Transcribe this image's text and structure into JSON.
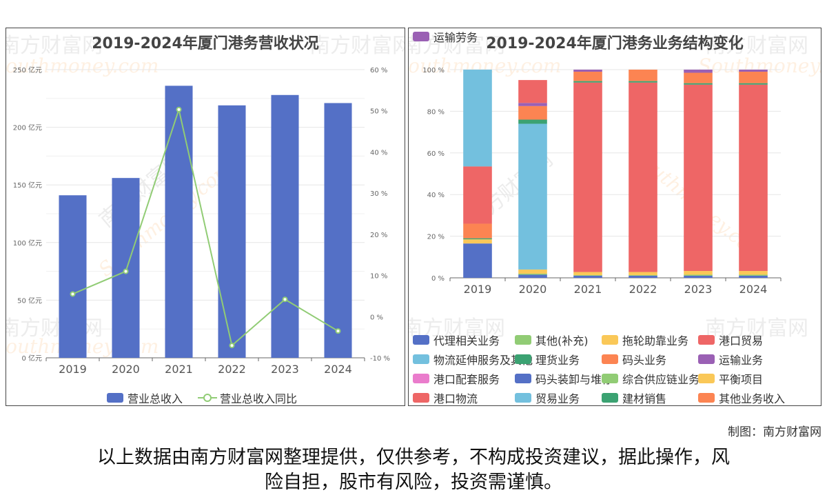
{
  "left_chart": {
    "title": "2019-2024年厦门港务营收状况",
    "legend": {
      "bar": "营业总收入",
      "line": "营业总收入同比"
    }
  },
  "right_chart": {
    "title": "2019-2024年厦门港务业务结构变化"
  },
  "watermark": {
    "cn": "南方财富网",
    "en": "Southmoney.com"
  },
  "credit": "制图：南方财富网",
  "disclaimer": {
    "line1": "以上数据由南方财富网整理提供，仅供参考，不构成投资建议，据此操作，风",
    "line2": "险自担，股市有风险，投资需谨慎。"
  },
  "colors": {
    "bar": "#5470c6",
    "line": "#91cc75"
  },
  "chart_data": [
    {
      "type": "bar",
      "title": "2019-2024年厦门港务营收状况",
      "categories": [
        "2019",
        "2020",
        "2021",
        "2022",
        "2023",
        "2024"
      ],
      "series": [
        {
          "name": "营业总收入",
          "type": "bar",
          "axis": "left",
          "unit": "亿元",
          "values": [
            141,
            156,
            236,
            219,
            228,
            221
          ]
        },
        {
          "name": "营业总收入同比",
          "type": "line",
          "axis": "right",
          "unit": "%",
          "values": [
            5.5,
            11,
            50.3,
            -7,
            4.2,
            -3.5
          ]
        }
      ],
      "y_left": {
        "ticks": [
          "0 亿元",
          "50 亿元",
          "100 亿元",
          "150 亿元",
          "200 亿元",
          "250 亿元"
        ],
        "min": 0,
        "max": 250
      },
      "y_right": {
        "ticks": [
          "-10 %",
          "0 %",
          "10 %",
          "20 %",
          "30 %",
          "40 %",
          "50 %",
          "60 %"
        ],
        "min": -10,
        "max": 60
      }
    },
    {
      "type": "bar",
      "stacked": true,
      "title": "2019-2024年厦门港务业务结构变化",
      "categories": [
        "2019",
        "2020",
        "2021",
        "2022",
        "2023",
        "2024"
      ],
      "y": {
        "ticks": [
          "0 %",
          "20 %",
          "40 %",
          "60 %",
          "80 %",
          "100 %"
        ],
        "min": 0,
        "max": 100
      },
      "series": [
        {
          "name": "代理相关业务",
          "color": "#5470c6",
          "values": [
            16.5,
            0,
            0,
            0,
            0,
            0
          ]
        },
        {
          "name": "其他(补充)",
          "color": "#91cc75",
          "values": [
            0,
            0,
            0,
            0,
            0,
            0
          ]
        },
        {
          "name": "拖轮助靠业务",
          "color": "#fac858",
          "values": [
            2,
            0,
            0,
            0,
            0,
            0
          ]
        },
        {
          "name": "港口贸易",
          "color": "#ee6666",
          "values": [
            0,
            0,
            0,
            0,
            0,
            0
          ]
        },
        {
          "name": "物流延伸服务及其他",
          "color": "#73c0de",
          "values": [
            0,
            0,
            0,
            0,
            0,
            0
          ]
        },
        {
          "name": "理货业务",
          "color": "#3ba272",
          "values": [
            0.5,
            0,
            0,
            0,
            0,
            0
          ]
        },
        {
          "name": "码头业务",
          "color": "#fc8452",
          "values": [
            7,
            0,
            0,
            0,
            0,
            0
          ]
        },
        {
          "name": "运输业务",
          "color": "#9a60b4",
          "values": [
            0,
            0,
            0,
            0,
            0,
            0
          ]
        },
        {
          "name": "港口配套服务",
          "color": "#ea7ccc",
          "values": [
            0,
            0,
            0,
            0,
            0,
            0
          ]
        },
        {
          "name": "码头装卸与堆存",
          "color": "#5470c6",
          "values": [
            0,
            1.5,
            1,
            1,
            1,
            1
          ]
        },
        {
          "name": "综合供应链业务",
          "color": "#91cc75",
          "values": [
            0,
            0.5,
            0.3,
            0.3,
            0.5,
            0.5
          ]
        },
        {
          "name": "平衡项目",
          "color": "#fac858",
          "values": [
            0,
            2,
            1.5,
            1.5,
            1.8,
            1.8
          ]
        },
        {
          "name": "港口物流",
          "color": "#ee6666",
          "values": [
            27.5,
            0,
            91,
            91,
            89.5,
            89.5
          ]
        },
        {
          "name": "贸易业务",
          "color": "#73c0de",
          "values": [
            46.5,
            70,
            0,
            0,
            0,
            0
          ]
        },
        {
          "name": "建材销售",
          "color": "#3ba272",
          "values": [
            0,
            2,
            0.7,
            0.7,
            0.7,
            0.7
          ]
        },
        {
          "name": "其他业务收入",
          "color": "#fc8452",
          "values": [
            0,
            6.5,
            4.5,
            5.5,
            5,
            5.5
          ]
        },
        {
          "name": "运输劳务",
          "color": "#9a60b4",
          "values": [
            0,
            1.5,
            1,
            0,
            1.5,
            1
          ]
        },
        {
          "name": "港口贸易",
          "color": "#ee6666",
          "values": [
            0,
            11,
            0,
            0,
            0,
            0
          ]
        },
        {
          "name": "物流延伸服务及其他",
          "color": "#73c0de",
          "values": [
            0,
            0,
            0,
            0,
            0,
            0
          ]
        }
      ],
      "legend_order": [
        "代理相关业务",
        "其他(补充)",
        "拖轮助靠业务",
        "港口贸易",
        "物流延伸服务及其他",
        "理货业务",
        "码头业务",
        "运输业务",
        "港口配套服务",
        "码头装卸与堆存",
        "综合供应链业务",
        "平衡项目",
        "港口物流",
        "贸易业务",
        "建材销售",
        "其他业务收入",
        "运输劳务"
      ],
      "legend_colors": [
        "#5470c6",
        "#91cc75",
        "#fac858",
        "#ee6666",
        "#73c0de",
        "#3ba272",
        "#fc8452",
        "#9a60b4",
        "#ea7ccc",
        "#5470c6",
        "#91cc75",
        "#fac858",
        "#ee6666",
        "#73c0de",
        "#3ba272",
        "#fc8452",
        "#9a60b4"
      ]
    }
  ]
}
